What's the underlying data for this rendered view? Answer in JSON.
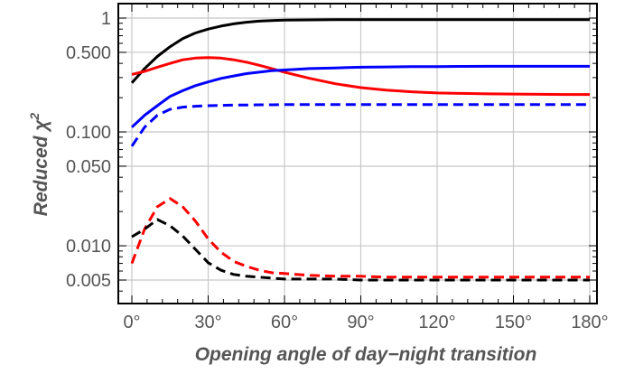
{
  "chart_data": {
    "type": "line",
    "title": "",
    "xlabel": "Opening angle of day−night transition",
    "ylabel": "Reduced χ",
    "ylabel_superscript": "2",
    "xlim": [
      0,
      180
    ],
    "ylim": [
      0.0035,
      1.5
    ],
    "yscale": "log",
    "grid": true,
    "x_ticks": [
      0,
      30,
      60,
      90,
      120,
      150,
      180
    ],
    "x_tick_labels": [
      "0°",
      "30°",
      "60°",
      "90°",
      "120°",
      "150°",
      "180°"
    ],
    "y_ticks": [
      0.005,
      0.01,
      0.05,
      0.1,
      0.5,
      1
    ],
    "y_tick_labels": [
      "0.005",
      "0.010",
      "0.050",
      "0.100",
      "0.500",
      "1"
    ],
    "x": [
      0,
      5,
      10,
      15,
      20,
      25,
      30,
      35,
      40,
      45,
      50,
      55,
      60,
      70,
      80,
      90,
      100,
      110,
      120,
      130,
      140,
      150,
      160,
      170,
      180
    ],
    "series": [
      {
        "color": "#000000",
        "dash": "solid",
        "values": [
          0.27,
          0.36,
          0.46,
          0.56,
          0.66,
          0.74,
          0.8,
          0.85,
          0.89,
          0.92,
          0.94,
          0.95,
          0.96,
          0.965,
          0.97,
          0.97,
          0.97,
          0.97,
          0.97,
          0.97,
          0.97,
          0.97,
          0.97,
          0.97,
          0.97
        ]
      },
      {
        "color": "#ff0000",
        "dash": "solid",
        "values": [
          0.32,
          0.34,
          0.37,
          0.4,
          0.43,
          0.445,
          0.45,
          0.445,
          0.43,
          0.41,
          0.385,
          0.36,
          0.335,
          0.295,
          0.265,
          0.245,
          0.233,
          0.225,
          0.22,
          0.218,
          0.216,
          0.215,
          0.214,
          0.213,
          0.213
        ]
      },
      {
        "color": "#0000ff",
        "dash": "solid",
        "values": [
          0.11,
          0.14,
          0.17,
          0.205,
          0.23,
          0.255,
          0.275,
          0.295,
          0.31,
          0.325,
          0.335,
          0.345,
          0.35,
          0.36,
          0.365,
          0.37,
          0.372,
          0.374,
          0.375,
          0.376,
          0.377,
          0.377,
          0.377,
          0.377,
          0.377
        ]
      },
      {
        "color": "#0000ff",
        "dash": "dashed",
        "values": [
          0.075,
          0.11,
          0.14,
          0.158,
          0.165,
          0.168,
          0.17,
          0.171,
          0.172,
          0.172,
          0.173,
          0.173,
          0.174,
          0.174,
          0.174,
          0.174,
          0.174,
          0.174,
          0.174,
          0.174,
          0.174,
          0.174,
          0.174,
          0.174,
          0.174
        ]
      },
      {
        "color": "#ff0000",
        "dash": "dashed",
        "values": [
          0.007,
          0.014,
          0.022,
          0.026,
          0.022,
          0.0165,
          0.0115,
          0.0088,
          0.0073,
          0.0066,
          0.0061,
          0.0058,
          0.0057,
          0.0055,
          0.0054,
          0.0054,
          0.0053,
          0.0053,
          0.0053,
          0.0053,
          0.0053,
          0.0053,
          0.0053,
          0.0053,
          0.0053
        ]
      },
      {
        "color": "#000000",
        "dash": "dashed",
        "values": [
          0.012,
          0.014,
          0.017,
          0.015,
          0.0122,
          0.0093,
          0.0071,
          0.0061,
          0.0056,
          0.0054,
          0.0053,
          0.0052,
          0.0051,
          0.0051,
          0.0051,
          0.005,
          0.005,
          0.005,
          0.005,
          0.005,
          0.005,
          0.005,
          0.005,
          0.005,
          0.005
        ]
      }
    ]
  }
}
